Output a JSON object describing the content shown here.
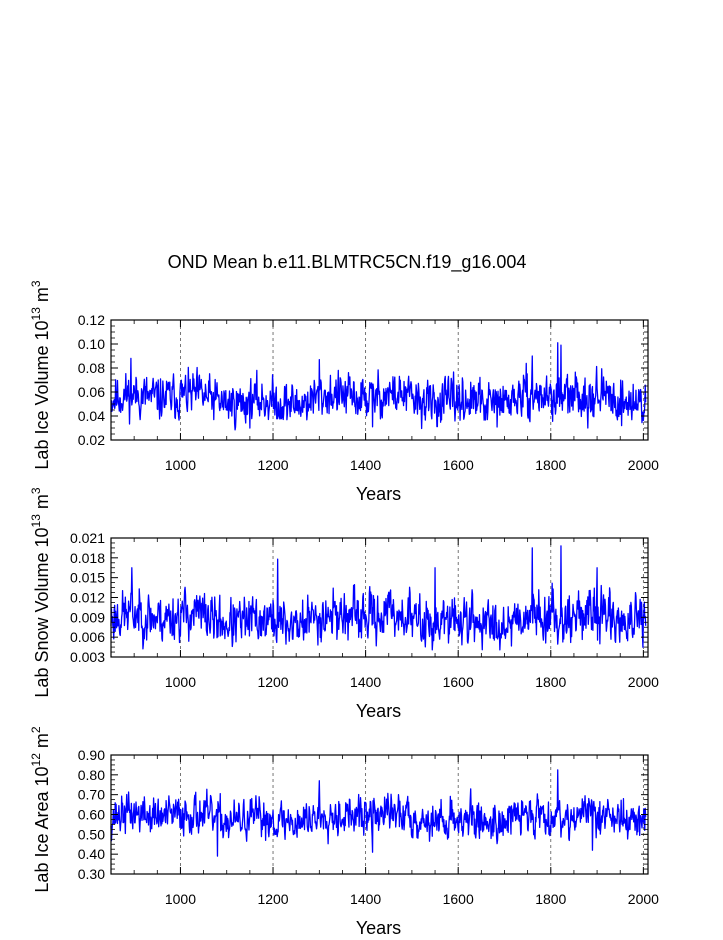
{
  "title": "OND Mean b.e11.BLMTRC5CN.f19_g16.004",
  "colors": {
    "series": "#0000ff",
    "axis": "#000000",
    "grid": "#555555"
  },
  "chart_data": [
    {
      "type": "line",
      "name": "ice-volume",
      "ylabel_text": "Lab Ice Volume 10",
      "ylabel_exp": "13",
      "ylabel_unit": "m",
      "ylabel_unit_exp": "3",
      "xlabel": "Years",
      "xlim": [
        850,
        2010
      ],
      "ylim": [
        0.02,
        0.12
      ],
      "xticks": [
        1000,
        1200,
        1400,
        1600,
        1800,
        2000
      ],
      "xtick_labels": [
        "1000",
        "1200",
        "1400",
        "1600",
        "1800",
        "2000"
      ],
      "yticks": [
        0.02,
        0.04,
        0.06,
        0.08,
        0.1,
        0.12
      ],
      "ytick_labels": [
        "0.02",
        "0.04",
        "0.06",
        "0.08",
        "0.10",
        "0.12"
      ],
      "vgrid": [
        1000,
        1200,
        1400,
        1600,
        1800,
        2000
      ],
      "series_stats": {
        "start_year": 850,
        "end_year": 2005,
        "mean": 0.054,
        "amplitude": 0.012,
        "seed": 11
      },
      "peaks": [
        [
          893,
          0.088
        ],
        [
          1300,
          0.087
        ],
        [
          1760,
          0.09
        ],
        [
          1815,
          0.101
        ],
        [
          1822,
          0.099
        ],
        [
          1415,
          0.031
        ],
        [
          1880,
          0.03
        ]
      ]
    },
    {
      "type": "line",
      "name": "snow-volume",
      "ylabel_text": "Lab Snow Volume 10",
      "ylabel_exp": "13",
      "ylabel_unit": "m",
      "ylabel_unit_exp": "3",
      "xlabel": "Years",
      "xlim": [
        850,
        2010
      ],
      "ylim": [
        0.003,
        0.021
      ],
      "xticks": [
        1000,
        1200,
        1400,
        1600,
        1800,
        2000
      ],
      "xtick_labels": [
        "1000",
        "1200",
        "1400",
        "1600",
        "1800",
        "2000"
      ],
      "yticks": [
        0.003,
        0.006,
        0.009,
        0.012,
        0.015,
        0.018,
        0.021
      ],
      "ytick_labels": [
        "0.003",
        "0.006",
        "0.009",
        "0.012",
        "0.015",
        "0.018",
        "0.021"
      ],
      "vgrid": [
        1000,
        1200,
        1400,
        1600,
        1800,
        2000
      ],
      "series_stats": {
        "start_year": 850,
        "end_year": 2005,
        "mean": 0.0088,
        "amplitude": 0.0024,
        "seed": 23
      },
      "peaks": [
        [
          895,
          0.0165
        ],
        [
          1210,
          0.0178
        ],
        [
          1760,
          0.0195
        ],
        [
          1822,
          0.0198
        ],
        [
          1550,
          0.0165
        ],
        [
          1900,
          0.0165
        ]
      ]
    },
    {
      "type": "line",
      "name": "ice-area",
      "ylabel_text": "Lab Ice Area 10",
      "ylabel_exp": "12",
      "ylabel_unit": "m",
      "ylabel_unit_exp": "2",
      "xlabel": "Years",
      "xlim": [
        850,
        2010
      ],
      "ylim": [
        0.3,
        0.9
      ],
      "xticks": [
        1000,
        1200,
        1400,
        1600,
        1800,
        2000
      ],
      "xtick_labels": [
        "1000",
        "1200",
        "1400",
        "1600",
        "1800",
        "2000"
      ],
      "yticks": [
        0.3,
        0.4,
        0.5,
        0.6,
        0.7,
        0.8,
        0.9
      ],
      "ytick_labels": [
        "0.30",
        "0.40",
        "0.50",
        "0.60",
        "0.70",
        "0.80",
        "0.90"
      ],
      "vgrid": [
        1000,
        1200,
        1400,
        1600,
        1800,
        2000
      ],
      "series_stats": {
        "start_year": 850,
        "end_year": 2005,
        "mean": 0.585,
        "amplitude": 0.065,
        "seed": 37
      },
      "peaks": [
        [
          1815,
          0.825
        ],
        [
          1300,
          0.77
        ],
        [
          1080,
          0.39
        ],
        [
          1415,
          0.41
        ],
        [
          1890,
          0.42
        ]
      ]
    }
  ]
}
